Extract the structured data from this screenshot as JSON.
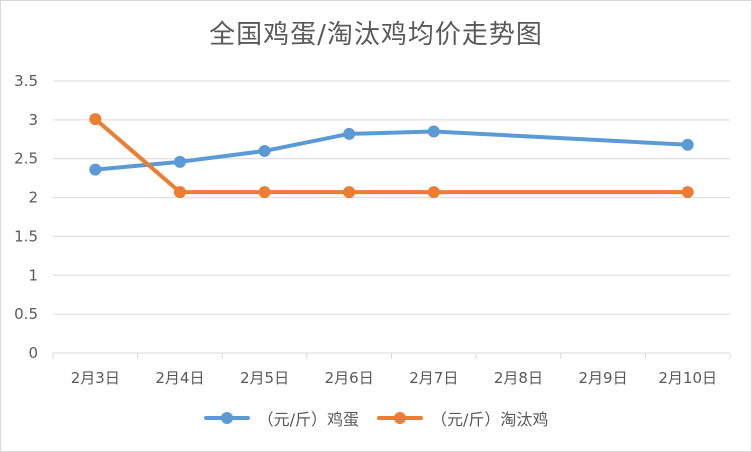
{
  "colors": {
    "egg": "#5b9bd5",
    "chicken": "#ed7d31",
    "grid": "#d9d9d9",
    "text": "#595959"
  },
  "chart_data": {
    "type": "line",
    "title": "全国鸡蛋/淘汰鸡均价走势图",
    "categories": [
      "2月3日",
      "2月4日",
      "2月5日",
      "2月6日",
      "2月7日",
      "2月8日",
      "2月9日",
      "2月10日"
    ],
    "series": [
      {
        "name": "（元/斤）鸡蛋",
        "values": [
          2.36,
          2.46,
          2.6,
          2.82,
          2.85,
          null,
          null,
          2.68
        ]
      },
      {
        "name": "（元/斤）淘汰鸡",
        "values": [
          3.01,
          2.07,
          2.07,
          2.07,
          2.07,
          null,
          null,
          2.07
        ]
      }
    ],
    "ylim": [
      0,
      3.5
    ],
    "yticks": [
      "0",
      "0.5",
      "1",
      "1.5",
      "2",
      "2.5",
      "3",
      "3.5"
    ],
    "grid": true,
    "legend": "bottom"
  }
}
